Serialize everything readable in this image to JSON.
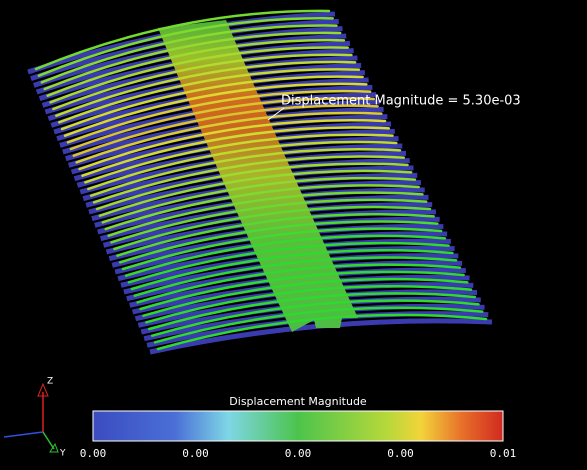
{
  "annotation": "Displacement Magnitude = 5.30e-03",
  "colorbar": {
    "title": "Displacement Magnitude",
    "ticks": [
      "0.00",
      "0.00",
      "0.00",
      "0.00",
      "0.01"
    ]
  },
  "axes": {
    "z": "Z",
    "y": "Y"
  }
}
